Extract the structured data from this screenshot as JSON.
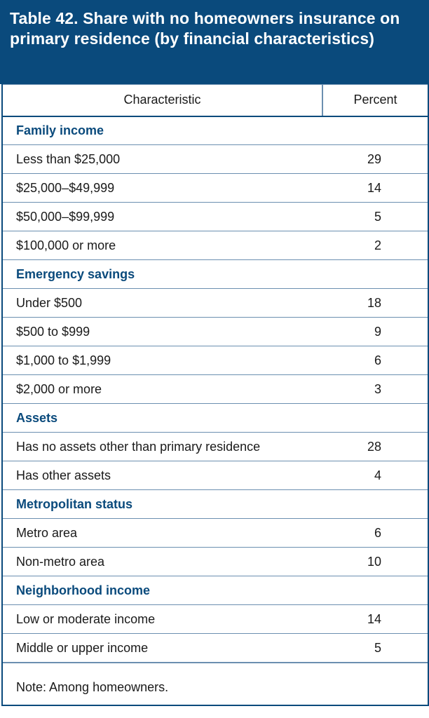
{
  "title": "Table 42. Share with no homeowners insurance on primary residence (by financial characteristics)",
  "columns": [
    "Characteristic",
    "Percent"
  ],
  "sections": [
    {
      "heading": "Family income",
      "rows": [
        {
          "label": "Less than $25,000",
          "value": "29"
        },
        {
          "label": "$25,000–$49,999",
          "value": "14"
        },
        {
          "label": "$50,000–$99,999",
          "value": "5"
        },
        {
          "label": "$100,000 or more",
          "value": "2"
        }
      ]
    },
    {
      "heading": "Emergency savings",
      "rows": [
        {
          "label": "Under $500",
          "value": "18"
        },
        {
          "label": "$500 to $999",
          "value": "9"
        },
        {
          "label": "$1,000 to $1,999",
          "value": "6"
        },
        {
          "label": "$2,000 or more",
          "value": "3"
        }
      ]
    },
    {
      "heading": "Assets",
      "rows": [
        {
          "label": "Has no assets other than primary residence",
          "value": "28"
        },
        {
          "label": "Has other assets",
          "value": "4"
        }
      ]
    },
    {
      "heading": "Metropolitan status",
      "rows": [
        {
          "label": "Metro area",
          "value": "6"
        },
        {
          "label": "Non-metro area",
          "value": "10"
        }
      ]
    },
    {
      "heading": "Neighborhood income",
      "rows": [
        {
          "label": "Low or moderate income",
          "value": "14"
        },
        {
          "label": "Middle or upper income",
          "value": "5"
        }
      ]
    }
  ],
  "note": "Note: Among homeowners.",
  "colors": {
    "header_blue": "#0a4a7c",
    "rule": "#6b8fb0"
  }
}
